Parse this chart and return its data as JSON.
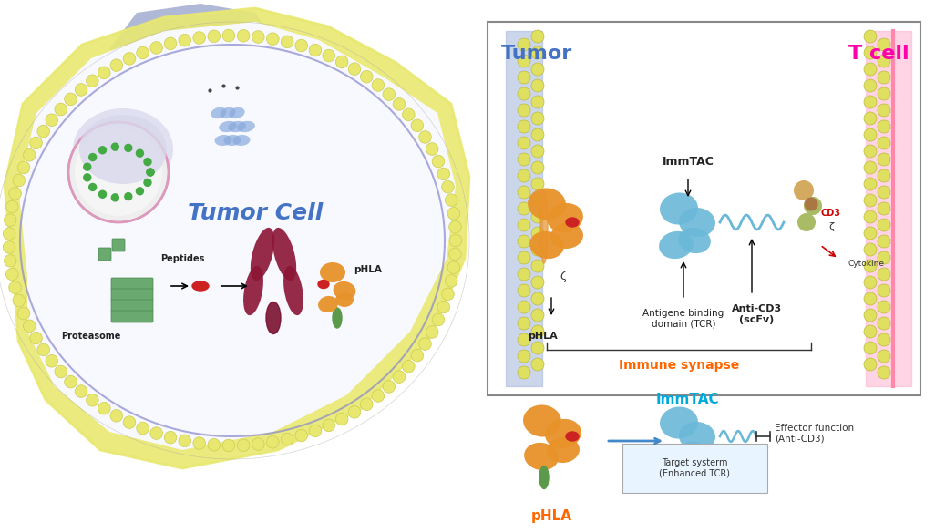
{
  "background_color": "#ffffff",
  "title": "",
  "tumor_cell_label": "Tumor Cell",
  "tumor_cell_label_color": "#4472C4",
  "tumor_label": "Tumor",
  "tumor_label_color": "#4472C4",
  "tcell_label": "T cell",
  "tcell_label_color": "#FF00AA",
  "immune_synapse_label": "Immune synapse",
  "immune_synapse_color": "#FF6600",
  "immtac_label": "ImmTAC",
  "immtac_color": "#00AADD",
  "immtac_label2": "ImmTAC",
  "phla_label": "pHLA",
  "phla_label_color": "#FF6600",
  "phla_label2": "pHLA",
  "proteasome_label": "Proteasome",
  "peptides_label": "Peptides",
  "antigen_binding_label": "Antigene binding\ndomain (TCR)",
  "anti_cd3_label": "Anti-CD3\n(scFv)",
  "cd3_label": "CD3",
  "cytokine_label": "Cytokine",
  "effector_label": "Effector function\n(Anti-CD3)",
  "target_systerm_label": "Target systerm\n(Enhanced TCR)",
  "cell_body_color": "#F0F0FF",
  "cell_membrane_outer": "#E8E8B0",
  "cell_nucleus_color": "#E8E8F8",
  "membrane_dot_color": "#DDDD88",
  "membrane_line_color": "#8888CC",
  "orange_color": "#E8922A",
  "blue_color": "#6AB8D8",
  "red_color": "#CC2222",
  "dark_red_color": "#8B1A3A",
  "green_color": "#5A9A6A",
  "pink_color": "#FFCCCC",
  "box_border_color": "#888888"
}
